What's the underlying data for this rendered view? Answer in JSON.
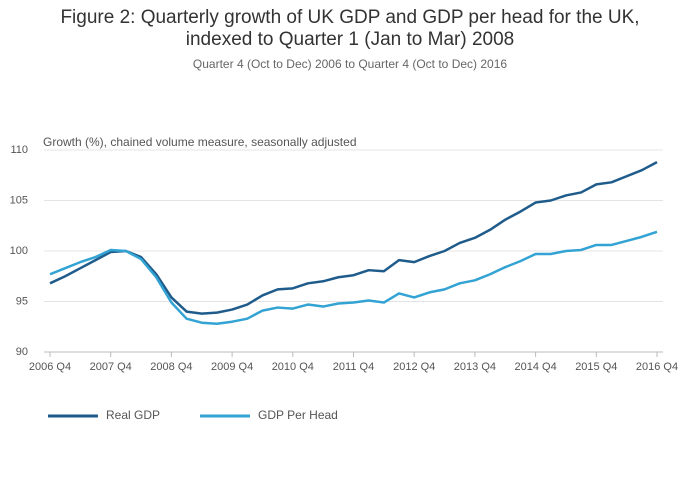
{
  "chart_data": {
    "type": "line",
    "title": [
      "Figure 2: Quarterly growth of UK GDP and GDP per head for the UK,",
      "indexed to Quarter 1 (Jan to Mar) 2008"
    ],
    "subtitle": "Quarter 4 (Oct to Dec) 2006 to Quarter 4 (Oct to Dec) 2016",
    "y_axis_label": "Growth (%), chained volume measure, seasonally adjusted",
    "categories": [
      "2006 Q4",
      null,
      null,
      null,
      "2007 Q4",
      null,
      null,
      null,
      "2008 Q4",
      null,
      null,
      null,
      "2009 Q4",
      null,
      null,
      null,
      "2010 Q4",
      null,
      null,
      null,
      "2011 Q4",
      null,
      null,
      null,
      "2012 Q4",
      null,
      null,
      null,
      "2013 Q4",
      null,
      null,
      null,
      "2014 Q4",
      null,
      null,
      null,
      "2015 Q4",
      null,
      null,
      null,
      "2016 Q4"
    ],
    "series": [
      {
        "name": "Real GDP",
        "color": "#1f5c8b",
        "values": [
          96.8,
          97.5,
          98.3,
          99.1,
          99.9,
          100.0,
          99.4,
          97.7,
          95.4,
          94.0,
          93.8,
          93.9,
          94.2,
          94.7,
          95.6,
          96.2,
          96.3,
          96.8,
          97.0,
          97.4,
          97.6,
          98.1,
          98.0,
          99.1,
          98.9,
          99.5,
          100.0,
          100.8,
          101.3,
          102.1,
          103.1,
          103.9,
          104.8,
          105.0,
          105.5,
          105.8,
          106.6,
          106.8,
          107.4,
          108.0,
          108.8
        ]
      },
      {
        "name": "GDP Per Head",
        "color": "#33a3d3",
        "values": [
          97.7,
          98.3,
          98.9,
          99.4,
          100.1,
          100.0,
          99.2,
          97.4,
          94.9,
          93.3,
          92.9,
          92.8,
          93.0,
          93.3,
          94.1,
          94.4,
          94.3,
          94.7,
          94.5,
          94.8,
          94.9,
          95.1,
          94.9,
          95.8,
          95.4,
          95.9,
          96.2,
          96.8,
          97.1,
          97.7,
          98.4,
          99.0,
          99.7,
          99.7,
          100.0,
          100.1,
          100.6,
          100.6,
          101.0,
          101.4,
          101.9
        ]
      }
    ],
    "ylim": [
      90,
      110
    ],
    "yticks": [
      90,
      95,
      100,
      105,
      110
    ],
    "grid": true
  }
}
